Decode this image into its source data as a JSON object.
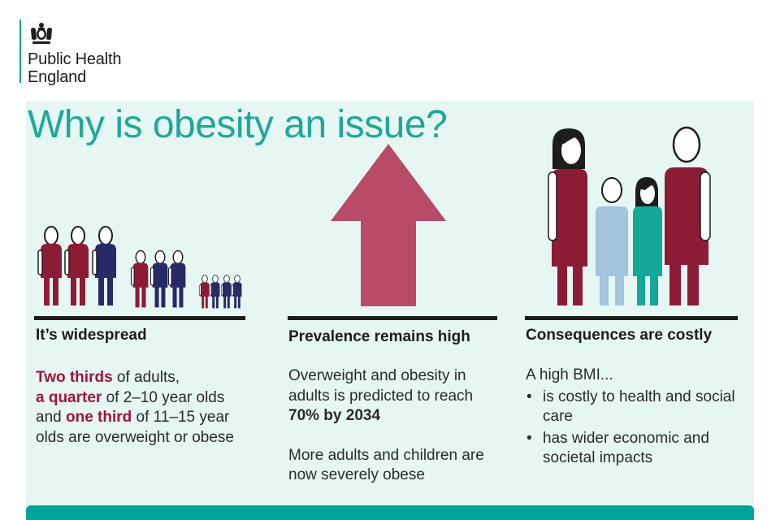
{
  "logo": {
    "line1": "Public Health",
    "line2": "England"
  },
  "title": "Why is obesity an issue?",
  "colors": {
    "crimson": "#8c1c35",
    "navy": "#262a66",
    "pink_arrow": "#b84b68",
    "teal": "#14a89a",
    "light_blue": "#a3c4dd",
    "panel_bg": "#e6f6f3",
    "accent_teal": "#00a499"
  },
  "col1": {
    "heading": "It’s widespread",
    "p1_hl1": "Two thirds",
    "p1_t1": " of adults,",
    "p1_hl2": "a quarter",
    "p1_t2": " of 2–10 year olds",
    "p1_t3": "and ",
    "p1_hl3": "one third",
    "p1_t4": " of 11–15 year",
    "p1_t5": "olds are overweight or obese"
  },
  "col2": {
    "heading": "Prevalence remains high",
    "p1_t1": "Overweight and obesity in",
    "p1_t2": "adults is predicted to reach",
    "p1_bold": "70% by 2034",
    "p2_t1": "More adults and children are",
    "p2_t2": "now severely obese"
  },
  "col3": {
    "heading": "Consequences are costly",
    "intro": "A high BMI...",
    "bullets": [
      {
        "line1": "is costly to health and social",
        "line2": "care"
      },
      {
        "line1": "has wider economic and",
        "line2": "societal impacts"
      }
    ],
    "bullet_char": "•"
  }
}
